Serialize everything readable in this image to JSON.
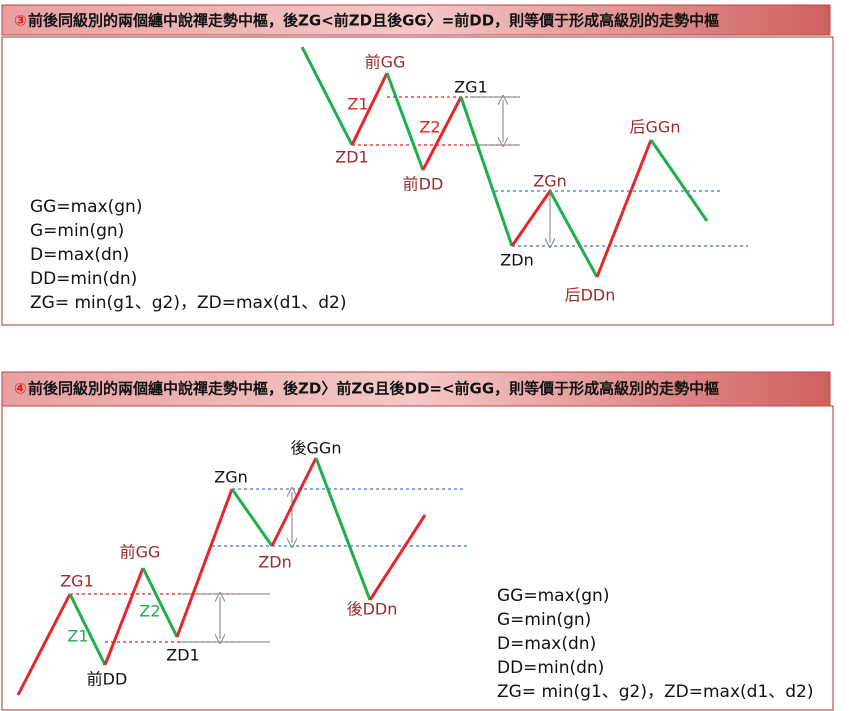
{
  "panels": [
    {
      "header": {
        "badge": "③",
        "text": "前後同級別的兩個纏中說禪走勢中樞，後ZG<前ZD且後GG〉=前DD，則等價于形成高級別的走勢中樞"
      },
      "labels": [
        "前GG",
        "Z1",
        "ZG1",
        "Z2",
        "ZD1",
        "前DD",
        "ZGn",
        "ZDn",
        "后GGn",
        "后DDn"
      ],
      "formulas": [
        "GG=max(gn)",
        "G=min(gn)",
        "D=max(dn)",
        "DD=min(dn)",
        "ZG= min(g1、g2)，ZD=max(d1、d2)"
      ]
    },
    {
      "header": {
        "badge": "④",
        "text": "前後同級別的兩個纏中說禪走勢中樞，後ZD〉前ZG且後DD=<前GG，則等價于形成高級別的走勢中樞"
      },
      "labels": [
        "ZG1",
        "Z1",
        "前DD",
        "前GG",
        "Z2",
        "ZD1",
        "ZGn",
        "ZDn",
        "後GGn",
        "後DDn"
      ],
      "formulas": [
        "GG=max(gn)",
        "G=min(gn)",
        "D=max(dn)",
        "DD=min(dn)",
        "ZG= min(g1、g2)，ZD=max(d1、d2)"
      ]
    }
  ]
}
